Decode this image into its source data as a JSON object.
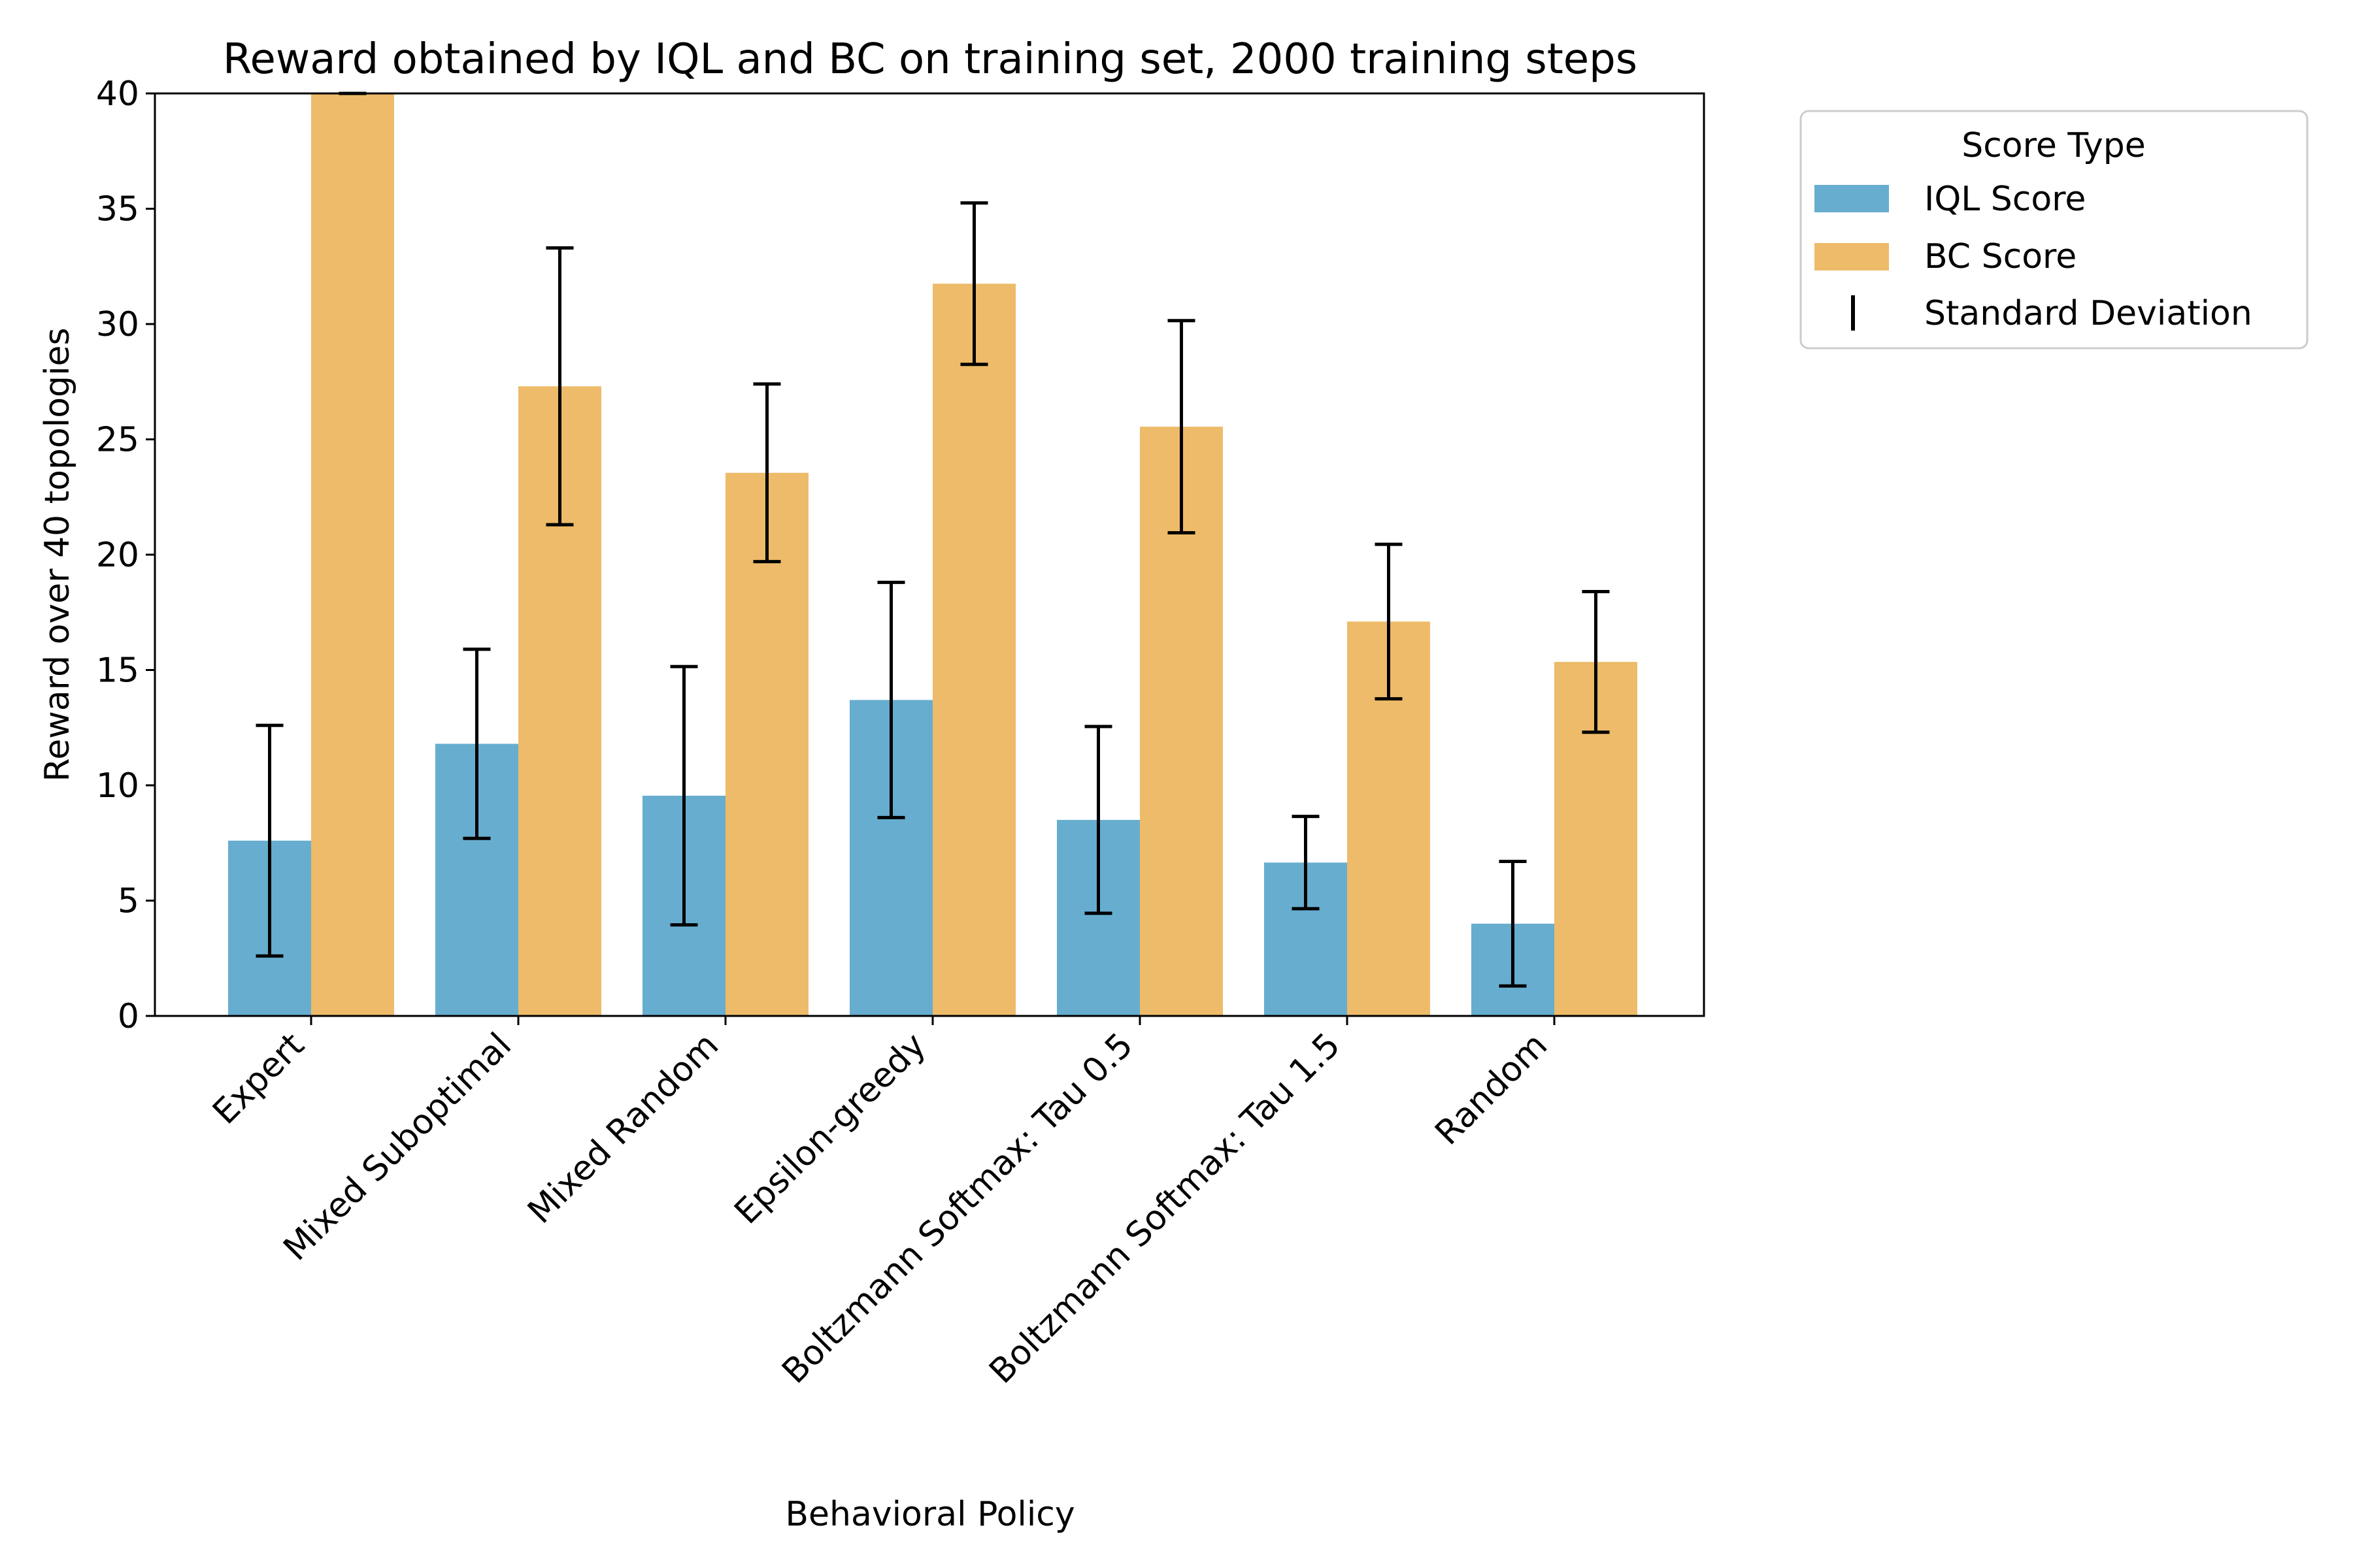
{
  "chart_data": {
    "type": "bar",
    "title": "Reward obtained by IQL and BC on training set, 2000 training steps",
    "xlabel": "Behavioral Policy",
    "ylabel": "Reward over 40 topologies",
    "ylim": [
      0,
      40
    ],
    "yticks": [
      0,
      5,
      10,
      15,
      20,
      25,
      30,
      35,
      40
    ],
    "grid": false,
    "categories": [
      "Expert",
      "Mixed Suboptimal",
      "Mixed Random",
      "Epsilon-greedy",
      "Boltzmann Softmax: Tau 0.5",
      "Boltzmann Softmax: Tau 1.5",
      "Random"
    ],
    "series": [
      {
        "name": "IQL Score",
        "color": "#67adcf",
        "values": [
          7.6,
          11.8,
          9.55,
          13.7,
          8.5,
          6.65,
          4.0
        ],
        "errors": [
          5.0,
          4.1,
          5.6,
          5.1,
          4.05,
          2.0,
          2.7
        ]
      },
      {
        "name": "BC Score",
        "color": "#edbb69",
        "values": [
          40.0,
          27.3,
          23.55,
          31.75,
          25.55,
          17.1,
          15.35
        ],
        "errors": [
          0.0,
          6.0,
          3.85,
          3.5,
          4.6,
          3.35,
          3.05
        ]
      }
    ],
    "legend": {
      "title": "Score Type",
      "placement": "outside-top-right",
      "entries": [
        "IQL Score",
        "BC Score",
        "Standard Deviation"
      ]
    }
  }
}
